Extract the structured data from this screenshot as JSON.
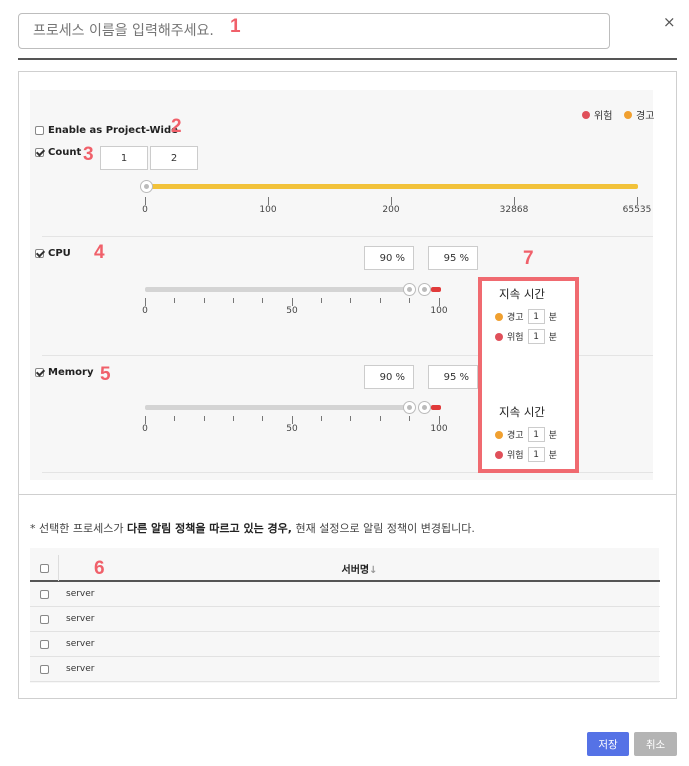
{
  "header": {
    "name_placeholder": "프로세스 이름을 입력해주세요.",
    "close_label": "×",
    "annotation": "1"
  },
  "legend": {
    "danger_label": "위험",
    "warning_label": "경고"
  },
  "colors": {
    "danger": "#e0505a",
    "warning": "#f0a030",
    "count_track": "#f2c23a",
    "annotation": "#f0606a",
    "save_button": "#5572e6"
  },
  "project_wide": {
    "label": "Enable as Project-Wide",
    "checked": false,
    "annotation": "2"
  },
  "count": {
    "label": "Count",
    "checked": true,
    "annotation": "3",
    "min_value": "1",
    "max_value": "2",
    "ticks": [
      "0",
      "100",
      "200",
      "32868",
      "65535"
    ]
  },
  "cpu": {
    "label": "CPU",
    "checked": true,
    "annotation": "4",
    "warning_value": "90 %",
    "danger_value": "95 %",
    "ticks": [
      "0",
      "50",
      "100"
    ]
  },
  "memory": {
    "label": "Memory",
    "checked": true,
    "annotation": "5",
    "warning_value": "90 %",
    "danger_value": "95 %",
    "ticks": [
      "0",
      "50",
      "100"
    ]
  },
  "duration": {
    "annotation": "7",
    "title": "지속 시간",
    "cpu": {
      "warning_label": "경고",
      "warning_value": "1",
      "danger_label": "위험",
      "danger_value": "1",
      "unit": "분"
    },
    "memory": {
      "warning_label": "경고",
      "warning_value": "1",
      "danger_label": "위험",
      "danger_value": "1",
      "unit": "분"
    }
  },
  "note": {
    "prefix": "* 선택한 프로세스가 ",
    "bold": "다른 알림 정책을 따르고 있는 경우,",
    "suffix": " 현재 설정으로 알림 정책이 변경됩니다."
  },
  "table": {
    "annotation": "6",
    "header": "서버명",
    "sort_icon": "↓",
    "rows": [
      "server",
      "server",
      "server",
      "server"
    ]
  },
  "buttons": {
    "save": "저장",
    "cancel": "취소"
  }
}
